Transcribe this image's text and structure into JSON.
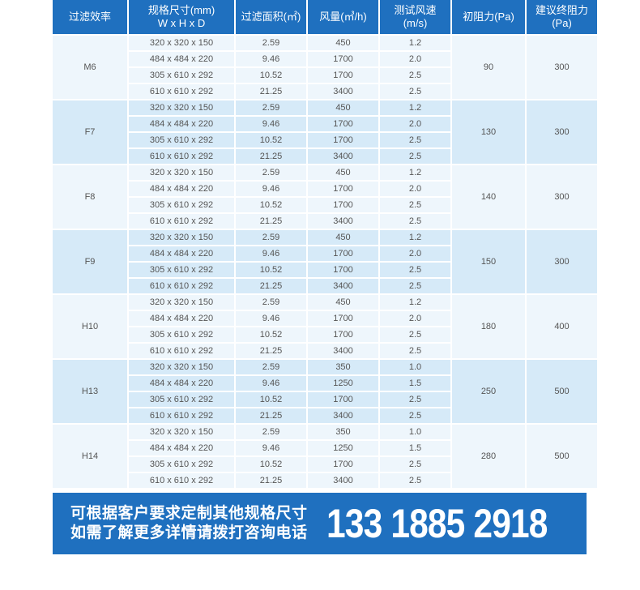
{
  "header": [
    "过滤效率",
    "规格尺寸(mm)\nW x H x D",
    "过滤面积(㎡)",
    "风量(㎥/h)",
    "测试风速\n(m/s)",
    "初阻力(Pa)",
    "建议终阻力\n(Pa)"
  ],
  "groups": [
    {
      "grade": "M6",
      "initial": "90",
      "final": "300",
      "rows": [
        [
          "320 x 320 x 150",
          "2.59",
          "450",
          "1.2"
        ],
        [
          "484 x 484 x 220",
          "9.46",
          "1700",
          "2.0"
        ],
        [
          "305 x 610 x 292",
          "10.52",
          "1700",
          "2.5"
        ],
        [
          "610 x 610 x 292",
          "21.25",
          "3400",
          "2.5"
        ]
      ]
    },
    {
      "grade": "F7",
      "initial": "130",
      "final": "300",
      "rows": [
        [
          "320 x 320 x 150",
          "2.59",
          "450",
          "1.2"
        ],
        [
          "484 x 484 x 220",
          "9.46",
          "1700",
          "2.0"
        ],
        [
          "305 x 610 x 292",
          "10.52",
          "1700",
          "2.5"
        ],
        [
          "610 x 610 x 292",
          "21.25",
          "3400",
          "2.5"
        ]
      ]
    },
    {
      "grade": "F8",
      "initial": "140",
      "final": "300",
      "rows": [
        [
          "320 x 320 x 150",
          "2.59",
          "450",
          "1.2"
        ],
        [
          "484 x 484 x 220",
          "9.46",
          "1700",
          "2.0"
        ],
        [
          "305 x 610 x 292",
          "10.52",
          "1700",
          "2.5"
        ],
        [
          "610 x 610 x 292",
          "21.25",
          "3400",
          "2.5"
        ]
      ]
    },
    {
      "grade": "F9",
      "initial": "150",
      "final": "300",
      "rows": [
        [
          "320 x 320 x 150",
          "2.59",
          "450",
          "1.2"
        ],
        [
          "484 x 484 x 220",
          "9.46",
          "1700",
          "2.0"
        ],
        [
          "305 x 610 x 292",
          "10.52",
          "1700",
          "2.5"
        ],
        [
          "610 x 610 x 292",
          "21.25",
          "3400",
          "2.5"
        ]
      ]
    },
    {
      "grade": "H10",
      "initial": "180",
      "final": "400",
      "rows": [
        [
          "320 x 320 x 150",
          "2.59",
          "450",
          "1.2"
        ],
        [
          "484 x 484 x 220",
          "9.46",
          "1700",
          "2.0"
        ],
        [
          "305 x 610 x 292",
          "10.52",
          "1700",
          "2.5"
        ],
        [
          "610 x 610 x 292",
          "21.25",
          "3400",
          "2.5"
        ]
      ]
    },
    {
      "grade": "H13",
      "initial": "250",
      "final": "500",
      "rows": [
        [
          "320 x 320 x 150",
          "2.59",
          "350",
          "1.0"
        ],
        [
          "484 x 484 x 220",
          "9.46",
          "1250",
          "1.5"
        ],
        [
          "305 x 610 x 292",
          "10.52",
          "1700",
          "2.5"
        ],
        [
          "610 x 610 x 292",
          "21.25",
          "3400",
          "2.5"
        ]
      ]
    },
    {
      "grade": "H14",
      "initial": "280",
      "final": "500",
      "rows": [
        [
          "320 x 320 x 150",
          "2.59",
          "350",
          "1.0"
        ],
        [
          "484 x 484 x 220",
          "9.46",
          "1250",
          "1.5"
        ],
        [
          "305 x 610 x 292",
          "10.52",
          "1700",
          "2.5"
        ],
        [
          "610 x 610 x 292",
          "21.25",
          "3400",
          "2.5"
        ]
      ]
    }
  ],
  "banner": {
    "line1": "可根据客户要求定制其他规格尺寸",
    "line2": "如需了解更多详情请拨打咨询电话",
    "phone": "133 1885 2918"
  },
  "colors": {
    "header": "#1f70bf",
    "row_light": "#eef6fc",
    "row_blue": "#d6eaf8"
  }
}
